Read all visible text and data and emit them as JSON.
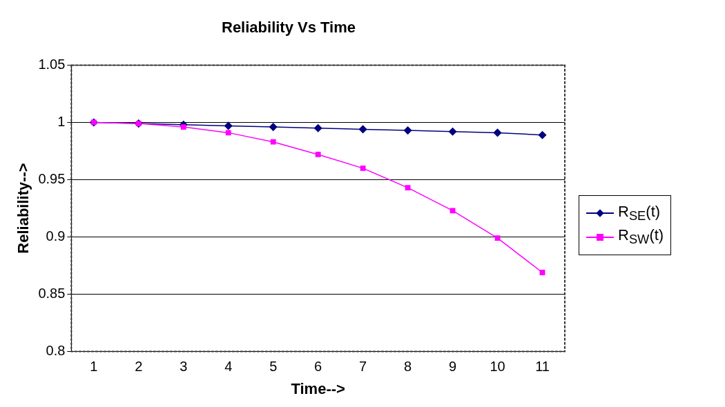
{
  "chart_data": {
    "type": "line",
    "title": "Reliability Vs Time",
    "xlabel": "Time-->",
    "ylabel": "Reliability-->",
    "categories": [
      "1",
      "2",
      "3",
      "4",
      "5",
      "6",
      "7",
      "8",
      "9",
      "10",
      "11"
    ],
    "series": [
      {
        "name": "R$_{SE}$(t)",
        "color": "#000080",
        "marker": "diamond",
        "values": [
          1.0,
          0.999,
          0.998,
          0.997,
          0.996,
          0.995,
          0.994,
          0.993,
          0.992,
          0.991,
          0.989
        ]
      },
      {
        "name": "R$_{SW}$(t)",
        "color": "#ff00ff",
        "marker": "square",
        "values": [
          1.0,
          0.999,
          0.996,
          0.991,
          0.983,
          0.972,
          0.96,
          0.943,
          0.923,
          0.899,
          0.869
        ]
      }
    ],
    "ylim": [
      0.8,
      1.05
    ],
    "yticks": [
      0.8,
      0.85,
      0.9,
      0.95,
      1,
      1.05
    ],
    "grid": "y",
    "legend": "right"
  }
}
